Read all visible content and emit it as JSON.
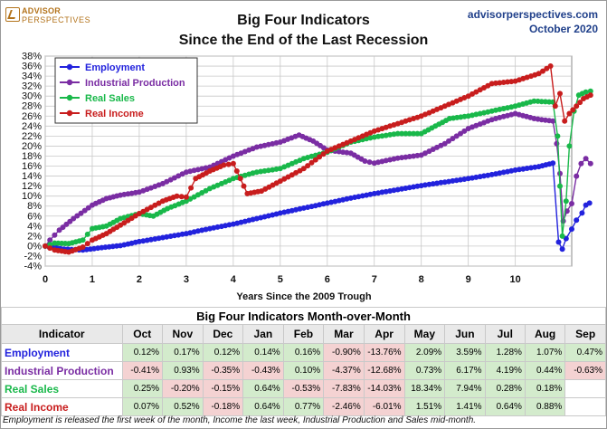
{
  "header": {
    "logo_line1": "ADVISOR",
    "logo_line2": "PERSPECTIVES",
    "title_line1": "Big Four Indicators",
    "title_line2": "Since the End of the Last Recession",
    "site": "advisorperspectives.com",
    "date": "October 2020"
  },
  "chart_data": {
    "type": "line",
    "title": "Big Four Indicators Since the End of the Last Recession",
    "xlabel": "Years Since the 2009 Trough",
    "ylabel": "",
    "xlim": [
      0,
      11.2
    ],
    "ylim": [
      -4,
      38
    ],
    "x_ticks": [
      "0",
      "1",
      "2",
      "3",
      "4",
      "5",
      "6",
      "7",
      "8",
      "9",
      "10"
    ],
    "y_ticks": [
      "-4%",
      "-2%",
      "0%",
      "2%",
      "4%",
      "6%",
      "8%",
      "10%",
      "12%",
      "14%",
      "16%",
      "18%",
      "20%",
      "22%",
      "24%",
      "26%",
      "28%",
      "30%",
      "32%",
      "34%",
      "36%",
      "38%"
    ],
    "grid": true,
    "legend_position": "top-left",
    "series": [
      {
        "name": "Employment",
        "color": "#2222dd",
        "points": [
          [
            0,
            0
          ],
          [
            0.4,
            -0.6
          ],
          [
            0.8,
            -0.8
          ],
          [
            1.2,
            -0.3
          ],
          [
            1.6,
            0.1
          ],
          [
            2,
            0.9
          ],
          [
            2.5,
            1.7
          ],
          [
            3,
            2.5
          ],
          [
            3.5,
            3.5
          ],
          [
            4,
            4.4
          ],
          [
            4.5,
            5.5
          ],
          [
            5,
            6.6
          ],
          [
            5.5,
            7.6
          ],
          [
            6,
            8.6
          ],
          [
            6.5,
            9.6
          ],
          [
            7,
            10.5
          ],
          [
            7.5,
            11.3
          ],
          [
            8,
            12.1
          ],
          [
            8.5,
            12.8
          ],
          [
            9,
            13.5
          ],
          [
            9.5,
            14.3
          ],
          [
            10,
            15.2
          ],
          [
            10.5,
            15.9
          ],
          [
            10.8,
            16.6
          ],
          [
            10.92,
            0.8
          ],
          [
            11.0,
            -0.6
          ],
          [
            11.08,
            1.5
          ],
          [
            11.2,
            3.4
          ],
          [
            11.3,
            5.2
          ],
          [
            11.42,
            6.6
          ],
          [
            11.5,
            8.2
          ],
          [
            11.58,
            8.6
          ]
        ]
      },
      {
        "name": "Industrial Production",
        "color": "#7a2da3",
        "points": [
          [
            0,
            0
          ],
          [
            0.1,
            1.2
          ],
          [
            0.3,
            3.2
          ],
          [
            0.6,
            5.5
          ],
          [
            1,
            8.2
          ],
          [
            1.3,
            9.5
          ],
          [
            1.6,
            10.2
          ],
          [
            2,
            10.8
          ],
          [
            2.5,
            12.5
          ],
          [
            3,
            14.8
          ],
          [
            3.5,
            15.8
          ],
          [
            4,
            18.0
          ],
          [
            4.5,
            19.8
          ],
          [
            5,
            20.8
          ],
          [
            5.4,
            22.2
          ],
          [
            5.7,
            21.0
          ],
          [
            6,
            19.2
          ],
          [
            6.5,
            18.6
          ],
          [
            6.8,
            17.0
          ],
          [
            7,
            16.6
          ],
          [
            7.5,
            17.6
          ],
          [
            8,
            18.2
          ],
          [
            8.5,
            20.5
          ],
          [
            9,
            23.5
          ],
          [
            9.5,
            25.3
          ],
          [
            10,
            26.5
          ],
          [
            10.4,
            25.5
          ],
          [
            10.8,
            25.0
          ],
          [
            10.88,
            20.5
          ],
          [
            10.95,
            14.5
          ],
          [
            11.02,
            5.0
          ],
          [
            11.1,
            7.0
          ],
          [
            11.2,
            8.5
          ],
          [
            11.3,
            14.0
          ],
          [
            11.4,
            16.5
          ],
          [
            11.5,
            17.5
          ],
          [
            11.6,
            16.5
          ]
        ]
      },
      {
        "name": "Real Sales",
        "color": "#19b84a",
        "points": [
          [
            0,
            0
          ],
          [
            0.2,
            0.6
          ],
          [
            0.5,
            0.5
          ],
          [
            0.8,
            1.2
          ],
          [
            1,
            3.5
          ],
          [
            1.3,
            4.0
          ],
          [
            1.6,
            5.5
          ],
          [
            2,
            6.5
          ],
          [
            2.3,
            6.0
          ],
          [
            2.6,
            7.5
          ],
          [
            3,
            9.0
          ],
          [
            3.5,
            11.5
          ],
          [
            4,
            13.5
          ],
          [
            4.5,
            14.8
          ],
          [
            5,
            15.5
          ],
          [
            5.5,
            17.5
          ],
          [
            6,
            18.8
          ],
          [
            6.5,
            20.8
          ],
          [
            7,
            21.8
          ],
          [
            7.5,
            22.5
          ],
          [
            8,
            22.5
          ],
          [
            8.3,
            24.0
          ],
          [
            8.6,
            25.5
          ],
          [
            9,
            26.0
          ],
          [
            9.5,
            27.0
          ],
          [
            10,
            28.0
          ],
          [
            10.4,
            29.0
          ],
          [
            10.8,
            28.8
          ],
          [
            10.9,
            22.0
          ],
          [
            10.95,
            12.0
          ],
          [
            11.0,
            2.0
          ],
          [
            11.08,
            9.0
          ],
          [
            11.15,
            20.0
          ],
          [
            11.25,
            27.0
          ],
          [
            11.35,
            30.2
          ],
          [
            11.5,
            30.8
          ],
          [
            11.6,
            31.0
          ]
        ]
      },
      {
        "name": "Real Income",
        "color": "#c81d1d",
        "points": [
          [
            0,
            0
          ],
          [
            0.2,
            -0.8
          ],
          [
            0.5,
            -1.2
          ],
          [
            0.8,
            -0.2
          ],
          [
            1,
            1.2
          ],
          [
            1.3,
            2.5
          ],
          [
            1.6,
            4.2
          ],
          [
            2,
            6.5
          ],
          [
            2.5,
            9.0
          ],
          [
            2.8,
            10.0
          ],
          [
            3,
            9.8
          ],
          [
            3.2,
            13.5
          ],
          [
            3.5,
            15.0
          ],
          [
            3.8,
            16.2
          ],
          [
            4,
            16.5
          ],
          [
            4.3,
            10.5
          ],
          [
            4.6,
            11.0
          ],
          [
            5,
            13.0
          ],
          [
            5.5,
            15.5
          ],
          [
            6,
            19.0
          ],
          [
            6.5,
            21.0
          ],
          [
            7,
            23.0
          ],
          [
            7.5,
            24.5
          ],
          [
            8,
            26.0
          ],
          [
            8.5,
            28.0
          ],
          [
            9,
            30.0
          ],
          [
            9.5,
            32.5
          ],
          [
            10,
            33.0
          ],
          [
            10.5,
            34.5
          ],
          [
            10.75,
            36.0
          ],
          [
            10.85,
            28.0
          ],
          [
            10.95,
            30.5
          ],
          [
            11.05,
            25.0
          ],
          [
            11.15,
            26.5
          ],
          [
            11.3,
            28.0
          ],
          [
            11.45,
            29.5
          ],
          [
            11.6,
            30.2
          ]
        ]
      }
    ]
  },
  "table": {
    "title": "Big Four Indicators Month-over-Month",
    "columns": [
      "Indicator",
      "Oct",
      "Nov",
      "Dec",
      "Jan",
      "Feb",
      "Mar",
      "Apr",
      "May",
      "Jun",
      "Jul",
      "Aug",
      "Sep"
    ],
    "rows": [
      {
        "name": "Employment",
        "color": "#2222dd",
        "values": [
          "0.12%",
          "0.17%",
          "0.12%",
          "0.14%",
          "0.16%",
          "-0.90%",
          "-13.76%",
          "2.09%",
          "3.59%",
          "1.28%",
          "1.07%",
          "0.47%"
        ]
      },
      {
        "name": "Industrial Production",
        "color": "#7a2da3",
        "values": [
          "-0.41%",
          "0.93%",
          "-0.35%",
          "-0.43%",
          "0.10%",
          "-4.37%",
          "-12.68%",
          "0.73%",
          "6.17%",
          "4.19%",
          "0.44%",
          "-0.63%"
        ]
      },
      {
        "name": "Real Sales",
        "color": "#19b84a",
        "values": [
          "0.25%",
          "-0.20%",
          "-0.15%",
          "0.64%",
          "-0.53%",
          "-7.83%",
          "-14.03%",
          "18.34%",
          "7.94%",
          "0.28%",
          "0.18%",
          ""
        ]
      },
      {
        "name": "Real Income",
        "color": "#c81d1d",
        "values": [
          "0.07%",
          "0.52%",
          "-0.18%",
          "0.64%",
          "0.77%",
          "-2.46%",
          "-6.01%",
          "1.51%",
          "1.41%",
          "0.64%",
          "0.88%",
          ""
        ]
      }
    ]
  },
  "footnote": "Employment is released the first week of the month, Income the last week, Industrial Production and Sales mid-month."
}
